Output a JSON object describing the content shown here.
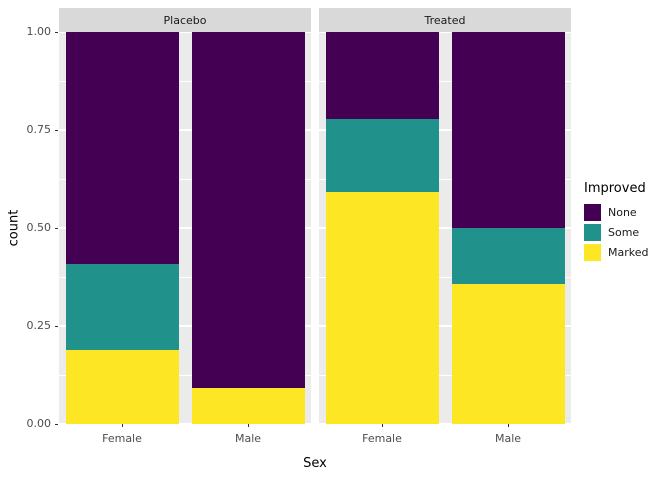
{
  "theme": {
    "panel_bg": "#EBEBEB",
    "strip_bg": "#D9D9D9",
    "grid_color": "#FFFFFF",
    "axis_text_color": "#4D4D4D",
    "strip_text_color": "#1A1A1A",
    "tick_mark_color": "#333333"
  },
  "chart_data": {
    "type": "bar",
    "stacked": true,
    "normalized": true,
    "title": "",
    "xlabel": "Sex",
    "ylabel": "count",
    "ylim": [
      0,
      1
    ],
    "grid": true,
    "y_ticks": [
      0,
      0.25,
      0.5,
      0.75,
      1
    ],
    "y_tick_labels": [
      "0.00",
      "0.25",
      "0.50",
      "0.75",
      "1.00"
    ],
    "y_minor_ticks": [
      0.125,
      0.375,
      0.625,
      0.875
    ],
    "legend": {
      "title": "Improved",
      "position": "right",
      "entries": [
        "None",
        "Some",
        "Marked"
      ]
    },
    "colors": {
      "None": "#440154",
      "Some": "#21918C",
      "Marked": "#FDE725"
    },
    "facets": [
      {
        "label": "Placebo",
        "categories": [
          "Female",
          "Male"
        ],
        "series": [
          {
            "name": "None",
            "values": [
              0.594,
              0.909
            ]
          },
          {
            "name": "Some",
            "values": [
              0.219,
              0.0
            ]
          },
          {
            "name": "Marked",
            "values": [
              0.188,
              0.091
            ]
          }
        ]
      },
      {
        "label": "Treated",
        "categories": [
          "Female",
          "Male"
        ],
        "series": [
          {
            "name": "None",
            "values": [
              0.222,
              0.5
            ]
          },
          {
            "name": "Some",
            "values": [
              0.185,
              0.143
            ]
          },
          {
            "name": "Marked",
            "values": [
              0.593,
              0.357
            ]
          }
        ]
      }
    ]
  }
}
